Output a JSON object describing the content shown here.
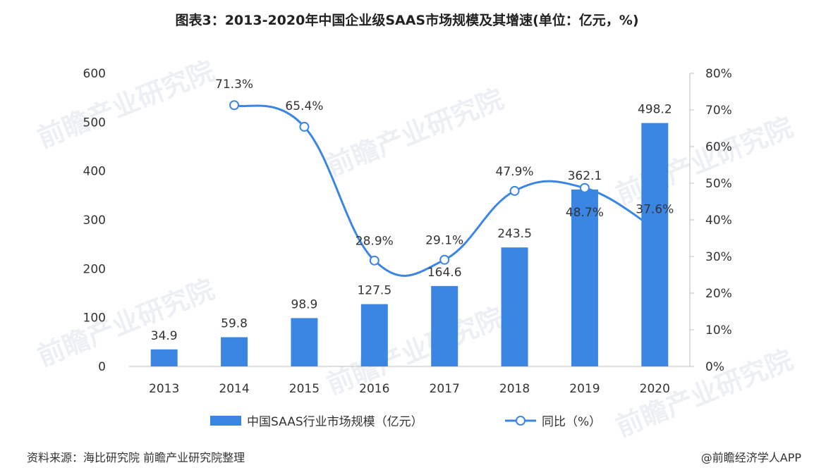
{
  "chart_data": {
    "type": "bar",
    "title": "图表3：2013-2020年中国企业级SAAS市场规模及其增速(单位：亿元，%)",
    "categories": [
      "2013",
      "2014",
      "2015",
      "2016",
      "2017",
      "2018",
      "2019",
      "2020"
    ],
    "series": [
      {
        "name": "中国SAAS行业市场规模（亿元）",
        "type": "bar",
        "axis": "left",
        "values": [
          34.9,
          59.8,
          98.9,
          127.5,
          164.6,
          243.5,
          362.1,
          498.2
        ],
        "labels": [
          "34.9",
          "59.8",
          "98.9",
          "127.5",
          "164.6",
          "243.5",
          "362.1",
          "498.2"
        ]
      },
      {
        "name": "同比（%）",
        "type": "line",
        "axis": "right",
        "values": [
          null,
          71.3,
          65.4,
          28.9,
          29.1,
          47.9,
          48.7,
          37.6
        ],
        "labels": [
          "",
          "71.3%",
          "65.4%",
          "28.9%",
          "29.1%",
          "47.9%",
          "48.7%",
          "37.6%"
        ]
      }
    ],
    "ylim_left": [
      0,
      600
    ],
    "yticks_left": [
      "0",
      "100",
      "200",
      "300",
      "400",
      "500",
      "600"
    ],
    "ylim_right": [
      0,
      80
    ],
    "yticks_right": [
      "0%",
      "10%",
      "20%",
      "30%",
      "40%",
      "50%",
      "60%",
      "70%",
      "80%"
    ],
    "grid": false,
    "legend_position": "bottom",
    "colors": {
      "bar": "#3b86e3",
      "line": "#3b86e3"
    }
  },
  "footer": {
    "source": "资料来源：海比研究院 前瞻产业研究院整理",
    "brand": "@前瞻经济学人APP"
  },
  "watermark": "前瞻产业研究院"
}
